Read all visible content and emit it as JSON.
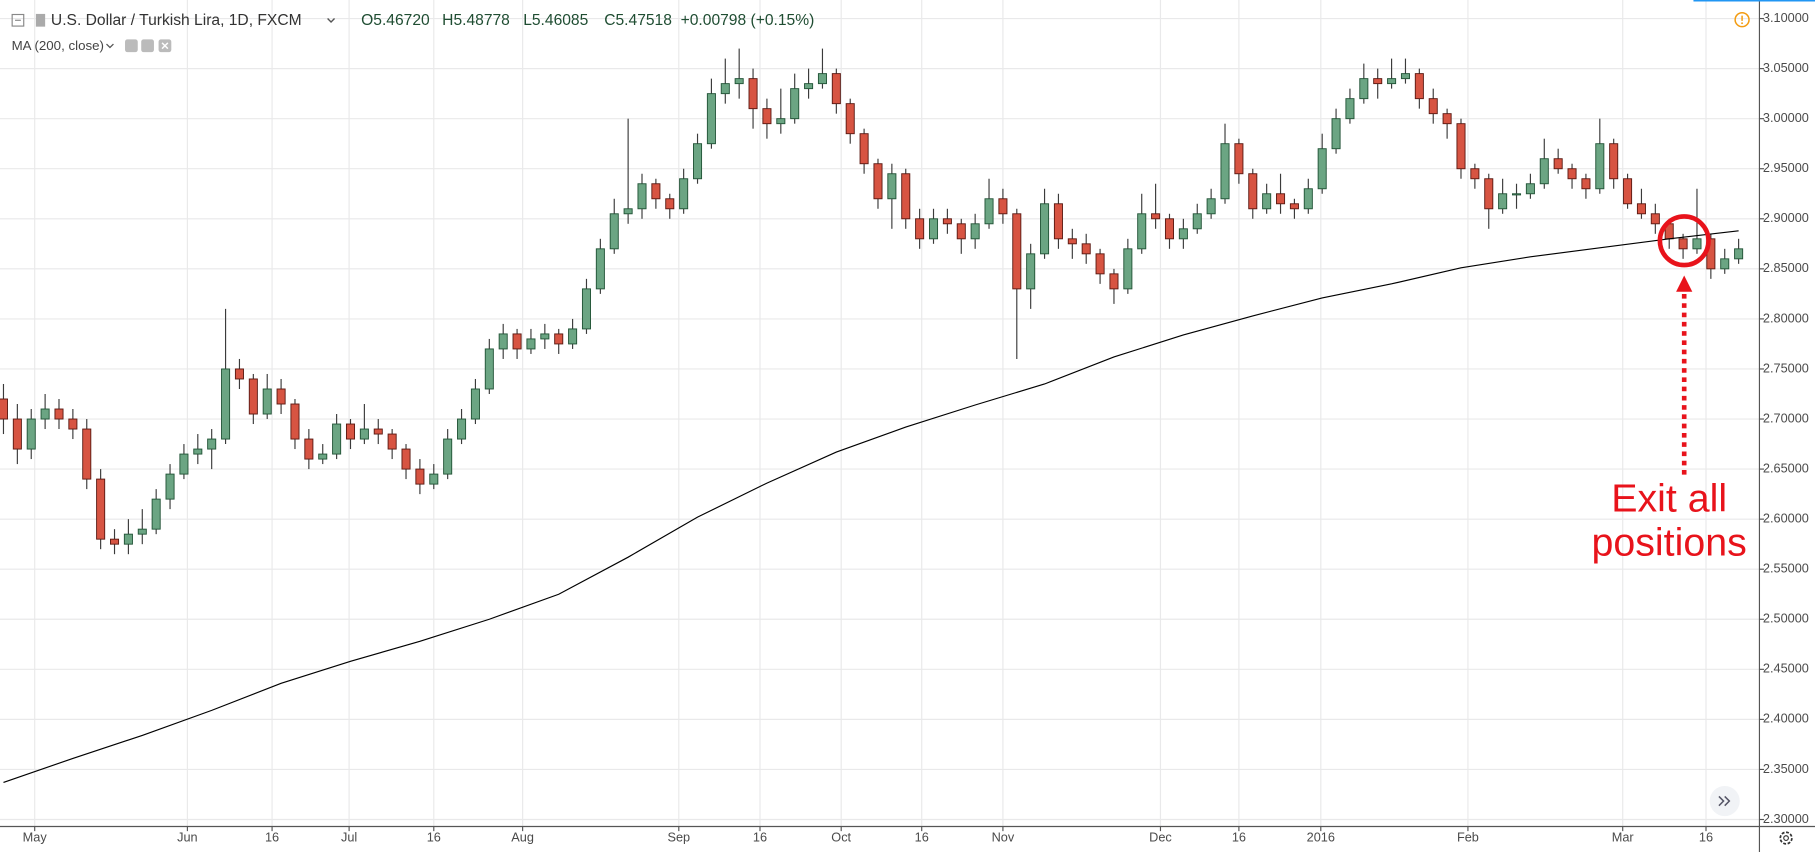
{
  "chart_data": {
    "type": "candlestick",
    "header": {
      "symbol": "U.S. Dollar / Turkish Lira, 1D, FXCM",
      "open": "O5.46720",
      "high": "H5.48778",
      "low": "L5.46085",
      "close": "C5.47518",
      "change": "+0.00798 (+0.15%)"
    },
    "indicator_label": "MA (200, close)",
    "annotation": [
      "Exit all",
      "positions"
    ],
    "up_color": "#6ba583",
    "down_color": "#d75442",
    "up_border": "#225437",
    "down_border": "#5b1a13",
    "wick_color": "#3b3b3b",
    "ma_color": "#000000",
    "grid": true,
    "xlim": [
      -0.5,
      253
    ],
    "ylim": [
      2.293,
      3.1185
    ],
    "xticks": [
      {
        "value": 4.5,
        "label": "May"
      },
      {
        "value": 26.5,
        "label": "Jun"
      },
      {
        "value": 38.7,
        "label": "16"
      },
      {
        "value": 49.8,
        "label": "Jul"
      },
      {
        "value": 62,
        "label": "16"
      },
      {
        "value": 74.8,
        "label": "Aug"
      },
      {
        "value": 97.3,
        "label": "Sep"
      },
      {
        "value": 109,
        "label": "16"
      },
      {
        "value": 120.7,
        "label": "Oct"
      },
      {
        "value": 132.3,
        "label": "16"
      },
      {
        "value": 144,
        "label": "Nov"
      },
      {
        "value": 166.7,
        "label": "Dec"
      },
      {
        "value": 178,
        "label": "16"
      },
      {
        "value": 189.8,
        "label": "2016"
      },
      {
        "value": 211,
        "label": "Feb"
      },
      {
        "value": 233.3,
        "label": "Mar"
      },
      {
        "value": 245.3,
        "label": "16"
      }
    ],
    "yticks": [
      {
        "value": 2.3,
        "label": "2.30000"
      },
      {
        "value": 2.35,
        "label": "2.35000"
      },
      {
        "value": 2.4,
        "label": "2.40000"
      },
      {
        "value": 2.45,
        "label": "2.45000"
      },
      {
        "value": 2.5,
        "label": "2.50000"
      },
      {
        "value": 2.55,
        "label": "2.55000"
      },
      {
        "value": 2.6,
        "label": "2.60000"
      },
      {
        "value": 2.65,
        "label": "2.65000"
      },
      {
        "value": 2.7,
        "label": "2.70000"
      },
      {
        "value": 2.75,
        "label": "2.75000"
      },
      {
        "value": 2.8,
        "label": "2.80000"
      },
      {
        "value": 2.85,
        "label": "2.85000"
      },
      {
        "value": 2.9,
        "label": "2.90000"
      },
      {
        "value": 2.95,
        "label": "2.95000"
      },
      {
        "value": 3.0,
        "label": "3.00000"
      },
      {
        "value": 3.05,
        "label": "3.05000"
      },
      {
        "value": 3.1,
        "label": "3.10000"
      }
    ],
    "x": [
      0,
      2,
      4,
      6,
      8,
      10,
      12,
      14,
      16,
      18,
      20,
      22,
      24,
      26,
      28,
      30,
      32,
      34,
      36,
      38,
      40,
      42,
      44,
      46,
      48,
      50,
      52,
      54,
      56,
      58,
      60,
      62,
      64,
      66,
      68,
      70,
      72,
      74,
      76,
      78,
      80,
      82,
      84,
      86,
      88,
      90,
      92,
      94,
      96,
      98,
      100,
      102,
      104,
      106,
      108,
      110,
      112,
      114,
      116,
      118,
      120,
      122,
      124,
      126,
      128,
      130,
      132,
      134,
      136,
      138,
      140,
      142,
      144,
      146,
      148,
      150,
      152,
      154,
      156,
      158,
      160,
      162,
      164,
      166,
      168,
      170,
      172,
      174,
      176,
      178,
      180,
      182,
      184,
      186,
      188,
      190,
      192,
      194,
      196,
      198,
      200,
      202,
      204,
      206,
      208,
      210,
      212,
      214,
      216,
      218,
      220,
      222,
      224,
      226,
      228,
      230,
      232,
      234,
      236,
      238,
      240,
      242,
      244,
      246,
      248,
      250
    ],
    "candles": [
      [
        2.72,
        2.735,
        2.685,
        2.7
      ],
      [
        2.7,
        2.715,
        2.655,
        2.67
      ],
      [
        2.67,
        2.71,
        2.66,
        2.7
      ],
      [
        2.7,
        2.725,
        2.69,
        2.71
      ],
      [
        2.71,
        2.72,
        2.69,
        2.7
      ],
      [
        2.7,
        2.71,
        2.68,
        2.69
      ],
      [
        2.69,
        2.7,
        2.63,
        2.64
      ],
      [
        2.64,
        2.65,
        2.57,
        2.58
      ],
      [
        2.58,
        2.59,
        2.565,
        2.575
      ],
      [
        2.575,
        2.6,
        2.565,
        2.585
      ],
      [
        2.585,
        2.61,
        2.575,
        2.59
      ],
      [
        2.59,
        2.63,
        2.585,
        2.62
      ],
      [
        2.62,
        2.655,
        2.61,
        2.645
      ],
      [
        2.645,
        2.675,
        2.64,
        2.665
      ],
      [
        2.665,
        2.685,
        2.655,
        2.67
      ],
      [
        2.67,
        2.69,
        2.65,
        2.68
      ],
      [
        2.68,
        2.81,
        2.675,
        2.75
      ],
      [
        2.75,
        2.76,
        2.73,
        2.74
      ],
      [
        2.74,
        2.745,
        2.695,
        2.705
      ],
      [
        2.705,
        2.745,
        2.7,
        2.73
      ],
      [
        2.73,
        2.74,
        2.705,
        2.715
      ],
      [
        2.715,
        2.72,
        2.67,
        2.68
      ],
      [
        2.68,
        2.69,
        2.65,
        2.66
      ],
      [
        2.66,
        2.675,
        2.655,
        2.665
      ],
      [
        2.665,
        2.705,
        2.66,
        2.695
      ],
      [
        2.695,
        2.7,
        2.67,
        2.68
      ],
      [
        2.68,
        2.715,
        2.675,
        2.69
      ],
      [
        2.69,
        2.7,
        2.675,
        2.685
      ],
      [
        2.685,
        2.69,
        2.66,
        2.67
      ],
      [
        2.67,
        2.675,
        2.64,
        2.65
      ],
      [
        2.65,
        2.66,
        2.625,
        2.635
      ],
      [
        2.635,
        2.655,
        2.63,
        2.645
      ],
      [
        2.645,
        2.69,
        2.64,
        2.68
      ],
      [
        2.68,
        2.71,
        2.675,
        2.7
      ],
      [
        2.7,
        2.74,
        2.695,
        2.73
      ],
      [
        2.73,
        2.78,
        2.725,
        2.77
      ],
      [
        2.77,
        2.795,
        2.76,
        2.785
      ],
      [
        2.785,
        2.79,
        2.76,
        2.77
      ],
      [
        2.77,
        2.79,
        2.765,
        2.78
      ],
      [
        2.78,
        2.795,
        2.77,
        2.785
      ],
      [
        2.785,
        2.79,
        2.765,
        2.775
      ],
      [
        2.775,
        2.8,
        2.77,
        2.79
      ],
      [
        2.79,
        2.84,
        2.785,
        2.83
      ],
      [
        2.83,
        2.88,
        2.825,
        2.87
      ],
      [
        2.87,
        2.92,
        2.865,
        2.905
      ],
      [
        2.905,
        3.0,
        2.895,
        2.91
      ],
      [
        2.91,
        2.945,
        2.9,
        2.935
      ],
      [
        2.935,
        2.94,
        2.91,
        2.92
      ],
      [
        2.92,
        2.925,
        2.9,
        2.91
      ],
      [
        2.91,
        2.95,
        2.905,
        2.94
      ],
      [
        2.94,
        2.985,
        2.935,
        2.975
      ],
      [
        2.975,
        3.04,
        2.97,
        3.025
      ],
      [
        3.025,
        3.06,
        3.015,
        3.035
      ],
      [
        3.035,
        3.07,
        3.02,
        3.04
      ],
      [
        3.04,
        3.05,
        2.99,
        3.01
      ],
      [
        3.01,
        3.02,
        2.98,
        2.995
      ],
      [
        2.995,
        3.03,
        2.985,
        3.0
      ],
      [
        3.0,
        3.045,
        2.995,
        3.03
      ],
      [
        3.03,
        3.05,
        3.02,
        3.035
      ],
      [
        3.035,
        3.07,
        3.03,
        3.045
      ],
      [
        3.045,
        3.05,
        3.005,
        3.015
      ],
      [
        3.015,
        3.02,
        2.975,
        2.985
      ],
      [
        2.985,
        2.99,
        2.945,
        2.955
      ],
      [
        2.955,
        2.96,
        2.91,
        2.92
      ],
      [
        2.92,
        2.955,
        2.89,
        2.945
      ],
      [
        2.945,
        2.95,
        2.89,
        2.9
      ],
      [
        2.9,
        2.91,
        2.87,
        2.88
      ],
      [
        2.88,
        2.91,
        2.875,
        2.9
      ],
      [
        2.9,
        2.91,
        2.885,
        2.895
      ],
      [
        2.895,
        2.9,
        2.865,
        2.88
      ],
      [
        2.88,
        2.905,
        2.87,
        2.895
      ],
      [
        2.895,
        2.94,
        2.89,
        2.92
      ],
      [
        2.92,
        2.93,
        2.895,
        2.905
      ],
      [
        2.905,
        2.91,
        2.76,
        2.83
      ],
      [
        2.83,
        2.875,
        2.81,
        2.865
      ],
      [
        2.865,
        2.93,
        2.86,
        2.915
      ],
      [
        2.915,
        2.925,
        2.87,
        2.88
      ],
      [
        2.88,
        2.89,
        2.86,
        2.875
      ],
      [
        2.875,
        2.885,
        2.855,
        2.865
      ],
      [
        2.865,
        2.87,
        2.835,
        2.845
      ],
      [
        2.845,
        2.85,
        2.815,
        2.83
      ],
      [
        2.83,
        2.88,
        2.825,
        2.87
      ],
      [
        2.87,
        2.925,
        2.865,
        2.905
      ],
      [
        2.905,
        2.935,
        2.89,
        2.9
      ],
      [
        2.9,
        2.905,
        2.87,
        2.88
      ],
      [
        2.88,
        2.9,
        2.87,
        2.89
      ],
      [
        2.89,
        2.915,
        2.885,
        2.905
      ],
      [
        2.905,
        2.93,
        2.9,
        2.92
      ],
      [
        2.92,
        2.995,
        2.915,
        2.975
      ],
      [
        2.975,
        2.98,
        2.935,
        2.945
      ],
      [
        2.945,
        2.95,
        2.9,
        2.91
      ],
      [
        2.91,
        2.935,
        2.905,
        2.925
      ],
      [
        2.925,
        2.945,
        2.905,
        2.915
      ],
      [
        2.915,
        2.92,
        2.9,
        2.91
      ],
      [
        2.91,
        2.94,
        2.905,
        2.93
      ],
      [
        2.93,
        2.985,
        2.925,
        2.97
      ],
      [
        2.97,
        3.01,
        2.965,
        3.0
      ],
      [
        3.0,
        3.03,
        2.995,
        3.02
      ],
      [
        3.02,
        3.055,
        3.015,
        3.04
      ],
      [
        3.04,
        3.05,
        3.02,
        3.035
      ],
      [
        3.035,
        3.06,
        3.03,
        3.04
      ],
      [
        3.04,
        3.06,
        3.035,
        3.045
      ],
      [
        3.045,
        3.05,
        3.01,
        3.02
      ],
      [
        3.02,
        3.03,
        2.995,
        3.005
      ],
      [
        3.005,
        3.01,
        2.98,
        2.995
      ],
      [
        2.995,
        3.0,
        2.94,
        2.95
      ],
      [
        2.95,
        2.955,
        2.93,
        2.94
      ],
      [
        2.94,
        2.945,
        2.89,
        2.91
      ],
      [
        2.91,
        2.94,
        2.905,
        2.925
      ],
      [
        2.925,
        2.935,
        2.91,
        2.925
      ],
      [
        2.925,
        2.945,
        2.92,
        2.935
      ],
      [
        2.935,
        2.98,
        2.93,
        2.96
      ],
      [
        2.96,
        2.97,
        2.945,
        2.95
      ],
      [
        2.95,
        2.955,
        2.93,
        2.94
      ],
      [
        2.94,
        2.945,
        2.92,
        2.93
      ],
      [
        2.93,
        3.0,
        2.925,
        2.975
      ],
      [
        2.975,
        2.98,
        2.93,
        2.94
      ],
      [
        2.94,
        2.945,
        2.91,
        2.915
      ],
      [
        2.915,
        2.93,
        2.9,
        2.905
      ],
      [
        2.905,
        2.915,
        2.885,
        2.895
      ],
      [
        2.895,
        2.9,
        2.87,
        2.88
      ],
      [
        2.88,
        2.885,
        2.86,
        2.87
      ],
      [
        2.87,
        2.93,
        2.865,
        2.88
      ],
      [
        2.88,
        2.885,
        2.84,
        2.85
      ],
      [
        2.85,
        2.87,
        2.845,
        2.86
      ],
      [
        2.86,
        2.88,
        2.855,
        2.87
      ]
    ],
    "ma": {
      "x": [
        0,
        10,
        20,
        30,
        40,
        50,
        60,
        70,
        80,
        90,
        100,
        110,
        120,
        130,
        140,
        150,
        160,
        170,
        180,
        190,
        200,
        210,
        220,
        230,
        240,
        250
      ],
      "values": [
        2.337,
        2.361,
        2.384,
        2.409,
        2.436,
        2.458,
        2.478,
        2.5,
        2.525,
        2.562,
        2.602,
        2.636,
        2.667,
        2.692,
        2.714,
        2.735,
        2.762,
        2.784,
        2.803,
        2.821,
        2.835,
        2.851,
        2.862,
        2.871,
        2.88,
        2.888
      ]
    }
  }
}
